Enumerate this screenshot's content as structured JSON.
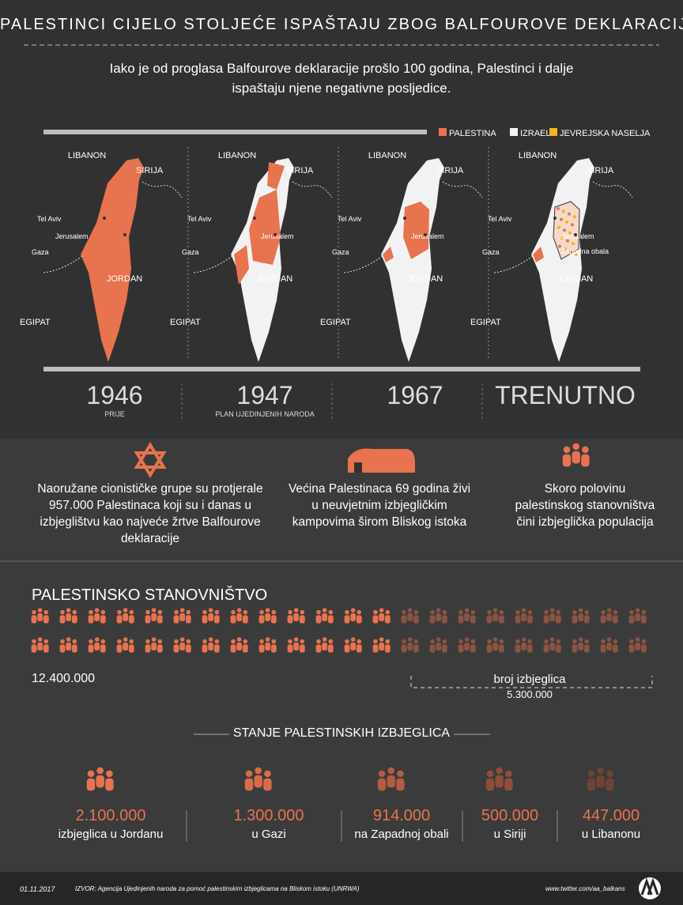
{
  "header": {
    "title": "PALESTINCI CIJELO STOLJEĆE ISPAŠTAJU ZBOG BALFOUROVE DEKLARACIJE",
    "subtitle": "Iako je od proglasa Balfourove deklaracije prošlo 100 godina, Palestinci i dalje ispaštaju njene negativne posljedice."
  },
  "legend": [
    "PALESTINA",
    "IZRAEL",
    "JEVREJSKA NASELJA"
  ],
  "maps": [
    {
      "year": "1946",
      "note": "PRIJE",
      "labels": {
        "libanon": "LIBANON",
        "sirija": "SIRIJA",
        "telaviv": "Tel Aviv",
        "jerusalem": "Jerusalem",
        "gaza": "Gaza",
        "jordan": "JORDAN",
        "egipat": "EGIPAT"
      }
    },
    {
      "year": "1947",
      "note": "PLAN UJEDINJENIH NARODA",
      "labels": {
        "libanon": "LIBANON",
        "sirija": "SIRIJA",
        "telaviv": "Tel Aviv",
        "jerusalem": "Jerusalem",
        "gaza": "Gaza",
        "jordan": "JORDAN",
        "egipat": "EGIPAT"
      }
    },
    {
      "year": "1967",
      "labels": {
        "libanon": "LIBANON",
        "sirija": "SIRIJA",
        "telaviv": "Tel Aviv",
        "jerusalem": "Jerusalem",
        "gaza": "Gaza",
        "jordan": "JORDAN",
        "egipat": "EGIPAT"
      }
    },
    {
      "year": "TRENUTNO",
      "labels": {
        "libanon": "LIBANON",
        "sirija": "SIRIJA",
        "telaviv": "Tel Aviv",
        "jerusalem": "Jerusalem",
        "zapadna": "Zapadna obala",
        "gaza": "Gaza",
        "jordan": "JORDAN",
        "egipat": "EGIPAT"
      }
    }
  ],
  "facts": [
    "Naoružane cionističke grupe su protjerale 957.000 Palestinaca koji su i danas u izbjeglištvu kao najveće žrtve Balfourove deklaracije",
    "Većina Palestinaca 69 godina živi u neuvjetnim izbjegličkim kampovima širom Bliskog istoka",
    "Skoro polovinu palestinskog stanovništva čini izbjeglička populacija"
  ],
  "population": {
    "title": "PALESTINSKO STANOVNIŠTVO",
    "total": "12.400.000",
    "refugees_label": "broj izbjeglica",
    "refugees": "5.300.000"
  },
  "refugee_status": {
    "title": "STANJE PALESTINSKIH IZBJEGLICA",
    "items": [
      {
        "value": "2.100.000",
        "label": "izbjeglica u Jordanu"
      },
      {
        "value": "1.300.000",
        "label": "u Gazi"
      },
      {
        "value": "914.000",
        "label": "na Zapadnoj obali"
      },
      {
        "value": "500.000",
        "label": "u Siriji"
      },
      {
        "value": "447.000",
        "label": "u Libanonu"
      }
    ]
  },
  "footer": {
    "date": "01.11.2017",
    "source": "IZVOR: Agencija Ujedinjenih naroda za pomoć palestinskim izbjeglicama na Bliskom istoku (UNRWA)",
    "url": "www.twitter.com/aa_balkans"
  }
}
